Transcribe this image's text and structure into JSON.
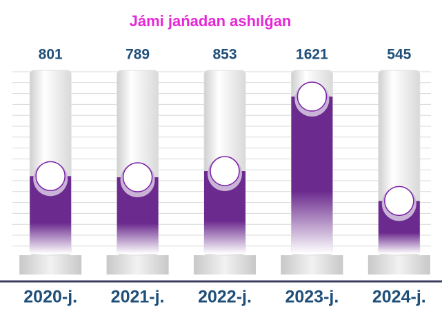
{
  "chart_data": {
    "type": "bar",
    "title": "Jámi jańadan ashılǵan",
    "categories": [
      "2020-j.",
      "2021-j.",
      "2022-j.",
      "2023-j.",
      "2024-j."
    ],
    "values": [
      801,
      789,
      853,
      1621,
      545
    ],
    "color": "#6b2a8e",
    "grid": true
  }
}
